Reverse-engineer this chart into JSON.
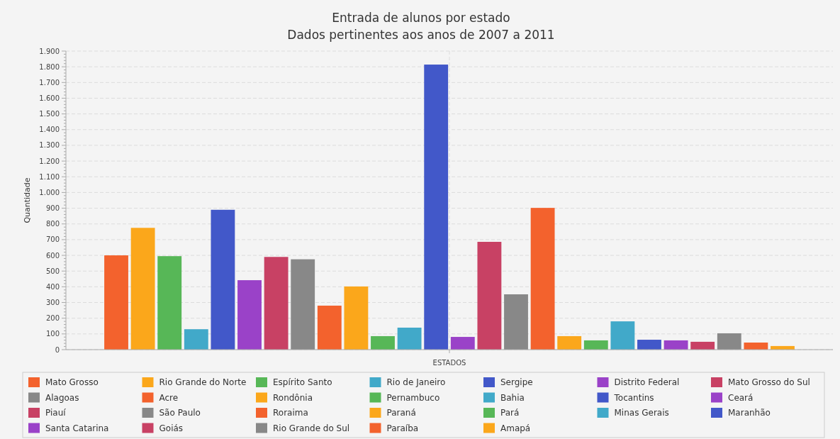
{
  "chart_data": {
    "type": "bar",
    "title": "Entrada de alunos por estado",
    "subtitle": "Dados pertinentes aos anos de 2007 a 2011",
    "xlabel": "ESTADOS",
    "ylabel": "Quantidade",
    "categories": [
      null
    ],
    "ylim": [
      0,
      1900
    ],
    "yticks": [
      0,
      100,
      200,
      300,
      400,
      500,
      600,
      700,
      800,
      900,
      {
        "value": 1000,
        "label": "1.000"
      },
      {
        "value": 1100,
        "label": "1.100"
      },
      {
        "value": 1200,
        "label": "1.200"
      },
      {
        "value": 1300,
        "label": "1.300"
      },
      {
        "value": 1400,
        "label": "1.400"
      },
      {
        "value": 1500,
        "label": "1.500"
      },
      {
        "value": 1600,
        "label": "1.600"
      },
      {
        "value": 1700,
        "label": "1.700"
      },
      {
        "value": 1800,
        "label": "1.800"
      },
      {
        "value": 1900,
        "label": "1.900"
      }
    ],
    "grid": true,
    "legend": "bottom",
    "series": [
      {
        "name": "Mato Grosso",
        "color": "#f3622d",
        "values": [
          600
        ]
      },
      {
        "name": "Rio Grande do Norte",
        "color": "#fba71b",
        "values": [
          775
        ]
      },
      {
        "name": "Espírito Santo",
        "color": "#57b757",
        "values": [
          595
        ]
      },
      {
        "name": "Rio de Janeiro",
        "color": "#41a9c9",
        "values": [
          130
        ]
      },
      {
        "name": "Sergipe",
        "color": "#4258c9",
        "values": [
          890
        ]
      },
      {
        "name": "Distrito Federal",
        "color": "#9a42c8",
        "values": [
          442
        ]
      },
      {
        "name": "Mato Grosso do Sul",
        "color": "#c84164",
        "values": [
          590
        ]
      },
      {
        "name": "Alagoas",
        "color": "#888888",
        "values": [
          575
        ]
      },
      {
        "name": "Acre",
        "color": "#f3622d",
        "values": [
          280
        ]
      },
      {
        "name": "Rondônia",
        "color": "#fba71b",
        "values": [
          402
        ]
      },
      {
        "name": "Pernambuco",
        "color": "#57b757",
        "values": [
          86
        ]
      },
      {
        "name": "Bahia",
        "color": "#41a9c9",
        "values": [
          140
        ]
      },
      {
        "name": "Tocantins",
        "color": "#4258c9",
        "values": [
          1814
        ]
      },
      {
        "name": "Ceará",
        "color": "#9a42c8",
        "values": [
          81
        ]
      },
      {
        "name": "Piauí",
        "color": "#c84164",
        "values": [
          686
        ]
      },
      {
        "name": "São Paulo",
        "color": "#888888",
        "values": [
          352
        ]
      },
      {
        "name": "Roraima",
        "color": "#f3622d",
        "values": [
          902
        ]
      },
      {
        "name": "Paraná",
        "color": "#fba71b",
        "values": [
          86
        ]
      },
      {
        "name": "Pará",
        "color": "#57b757",
        "values": [
          59
        ]
      },
      {
        "name": "Minas Gerais",
        "color": "#41a9c9",
        "values": [
          180
        ]
      },
      {
        "name": "Maranhão",
        "color": "#4258c9",
        "values": [
          63
        ]
      },
      {
        "name": "Santa Catarina",
        "color": "#9a42c8",
        "values": [
          59
        ]
      },
      {
        "name": "Goiás",
        "color": "#c84164",
        "values": [
          50
        ]
      },
      {
        "name": "Rio Grande do Sul",
        "color": "#888888",
        "values": [
          104
        ]
      },
      {
        "name": "Paraíba",
        "color": "#f3622d",
        "values": [
          45
        ]
      },
      {
        "name": "Amapá",
        "color": "#fba71b",
        "values": [
          23
        ]
      }
    ]
  }
}
